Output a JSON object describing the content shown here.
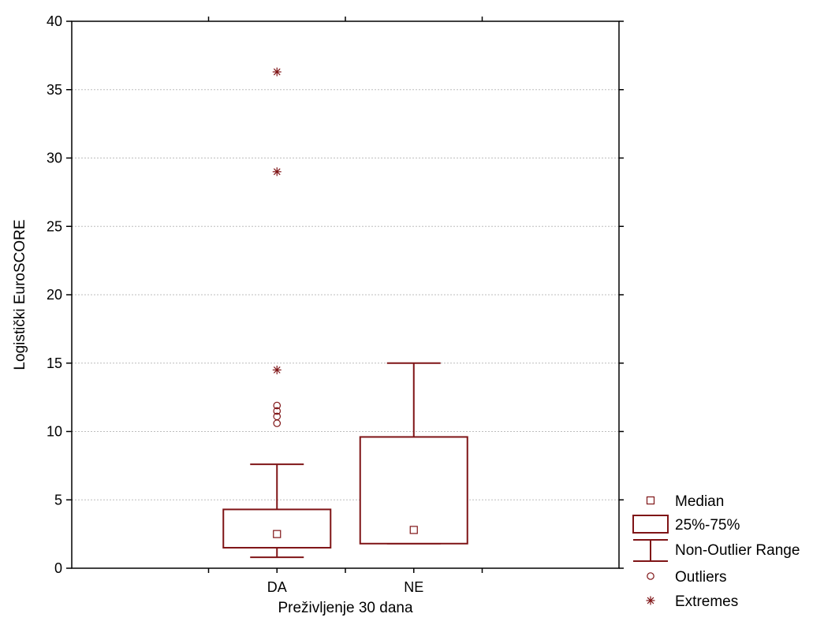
{
  "chart_data": {
    "type": "box",
    "xlabel": "Preživljenje 30 dana",
    "ylabel": "Logistički EuroSCORE",
    "ylim": [
      0,
      40
    ],
    "yticks": [
      "0",
      "5",
      "10",
      "15",
      "20",
      "25",
      "30",
      "35",
      "40"
    ],
    "grid": true,
    "legend_position": "bottom-right",
    "color": "#7f1416",
    "categories": [
      "DA",
      "NE"
    ],
    "boxes": [
      {
        "category": "DA",
        "median": 2.5,
        "q1": 1.5,
        "q3": 4.3,
        "whisker_low": 0.8,
        "whisker_high": 7.6,
        "outliers": [
          10.6,
          11.1,
          11.5,
          11.9
        ],
        "extremes": [
          14.5,
          29.0,
          36.3
        ]
      },
      {
        "category": "NE",
        "median": 2.8,
        "q1": 1.8,
        "q3": 9.6,
        "whisker_low": 1.8,
        "whisker_high": 15.0,
        "outliers": [],
        "extremes": []
      }
    ],
    "legend": [
      {
        "symbol": "median",
        "label": "Median"
      },
      {
        "symbol": "box",
        "label": "25%-75%"
      },
      {
        "symbol": "whisker",
        "label": "Non-Outlier Range"
      },
      {
        "symbol": "outlier",
        "label": "Outliers"
      },
      {
        "symbol": "extreme",
        "label": "Extremes"
      }
    ]
  }
}
